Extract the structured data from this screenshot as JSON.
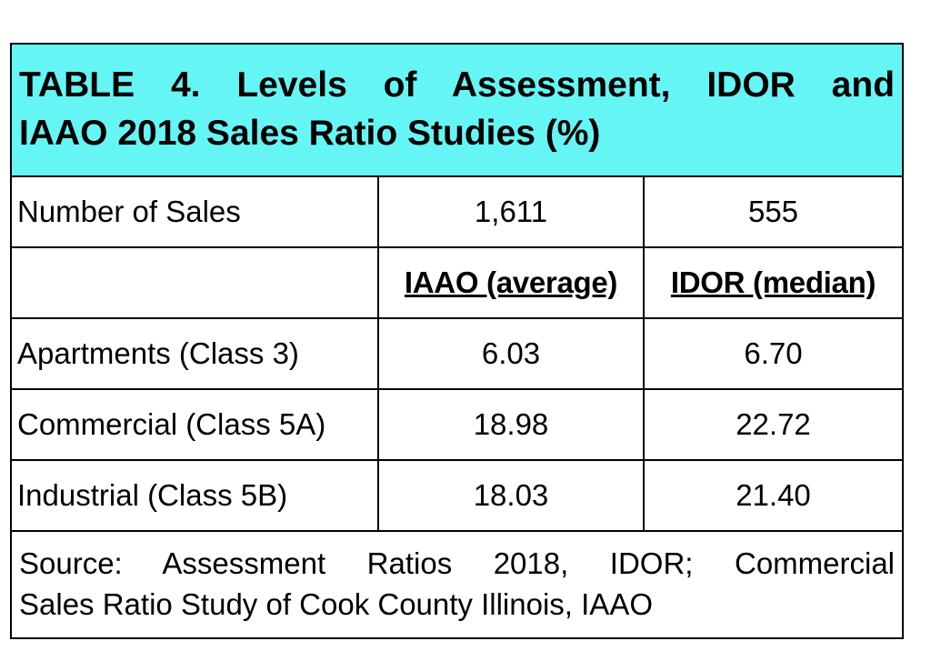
{
  "table": {
    "title_line1": "TABLE 4. Levels of Assessment, IDOR and",
    "title_line2": "IAAO 2018 Sales Ratio Studies (%)",
    "sales_row": {
      "label": "Number of Sales",
      "iaao": "1,611",
      "idor": "555"
    },
    "headers": {
      "label": "",
      "iaao": "IAAO (average)",
      "idor": "IDOR (median)"
    },
    "rows": [
      {
        "label": "Apartments (Class 3)",
        "iaao": "6.03",
        "idor": "6.70"
      },
      {
        "label": "Commercial (Class 5A)",
        "iaao": "18.98",
        "idor": "22.72"
      },
      {
        "label": "Industrial (Class 5B)",
        "iaao": "18.03",
        "idor": "21.40"
      }
    ],
    "source_line1": "Source: Assessment Ratios 2018, IDOR; Commercial",
    "source_line2": "Sales Ratio Study of Cook County Illinois, IAAO"
  },
  "colors": {
    "title_background": "#66f5f5",
    "border": "#000000"
  }
}
